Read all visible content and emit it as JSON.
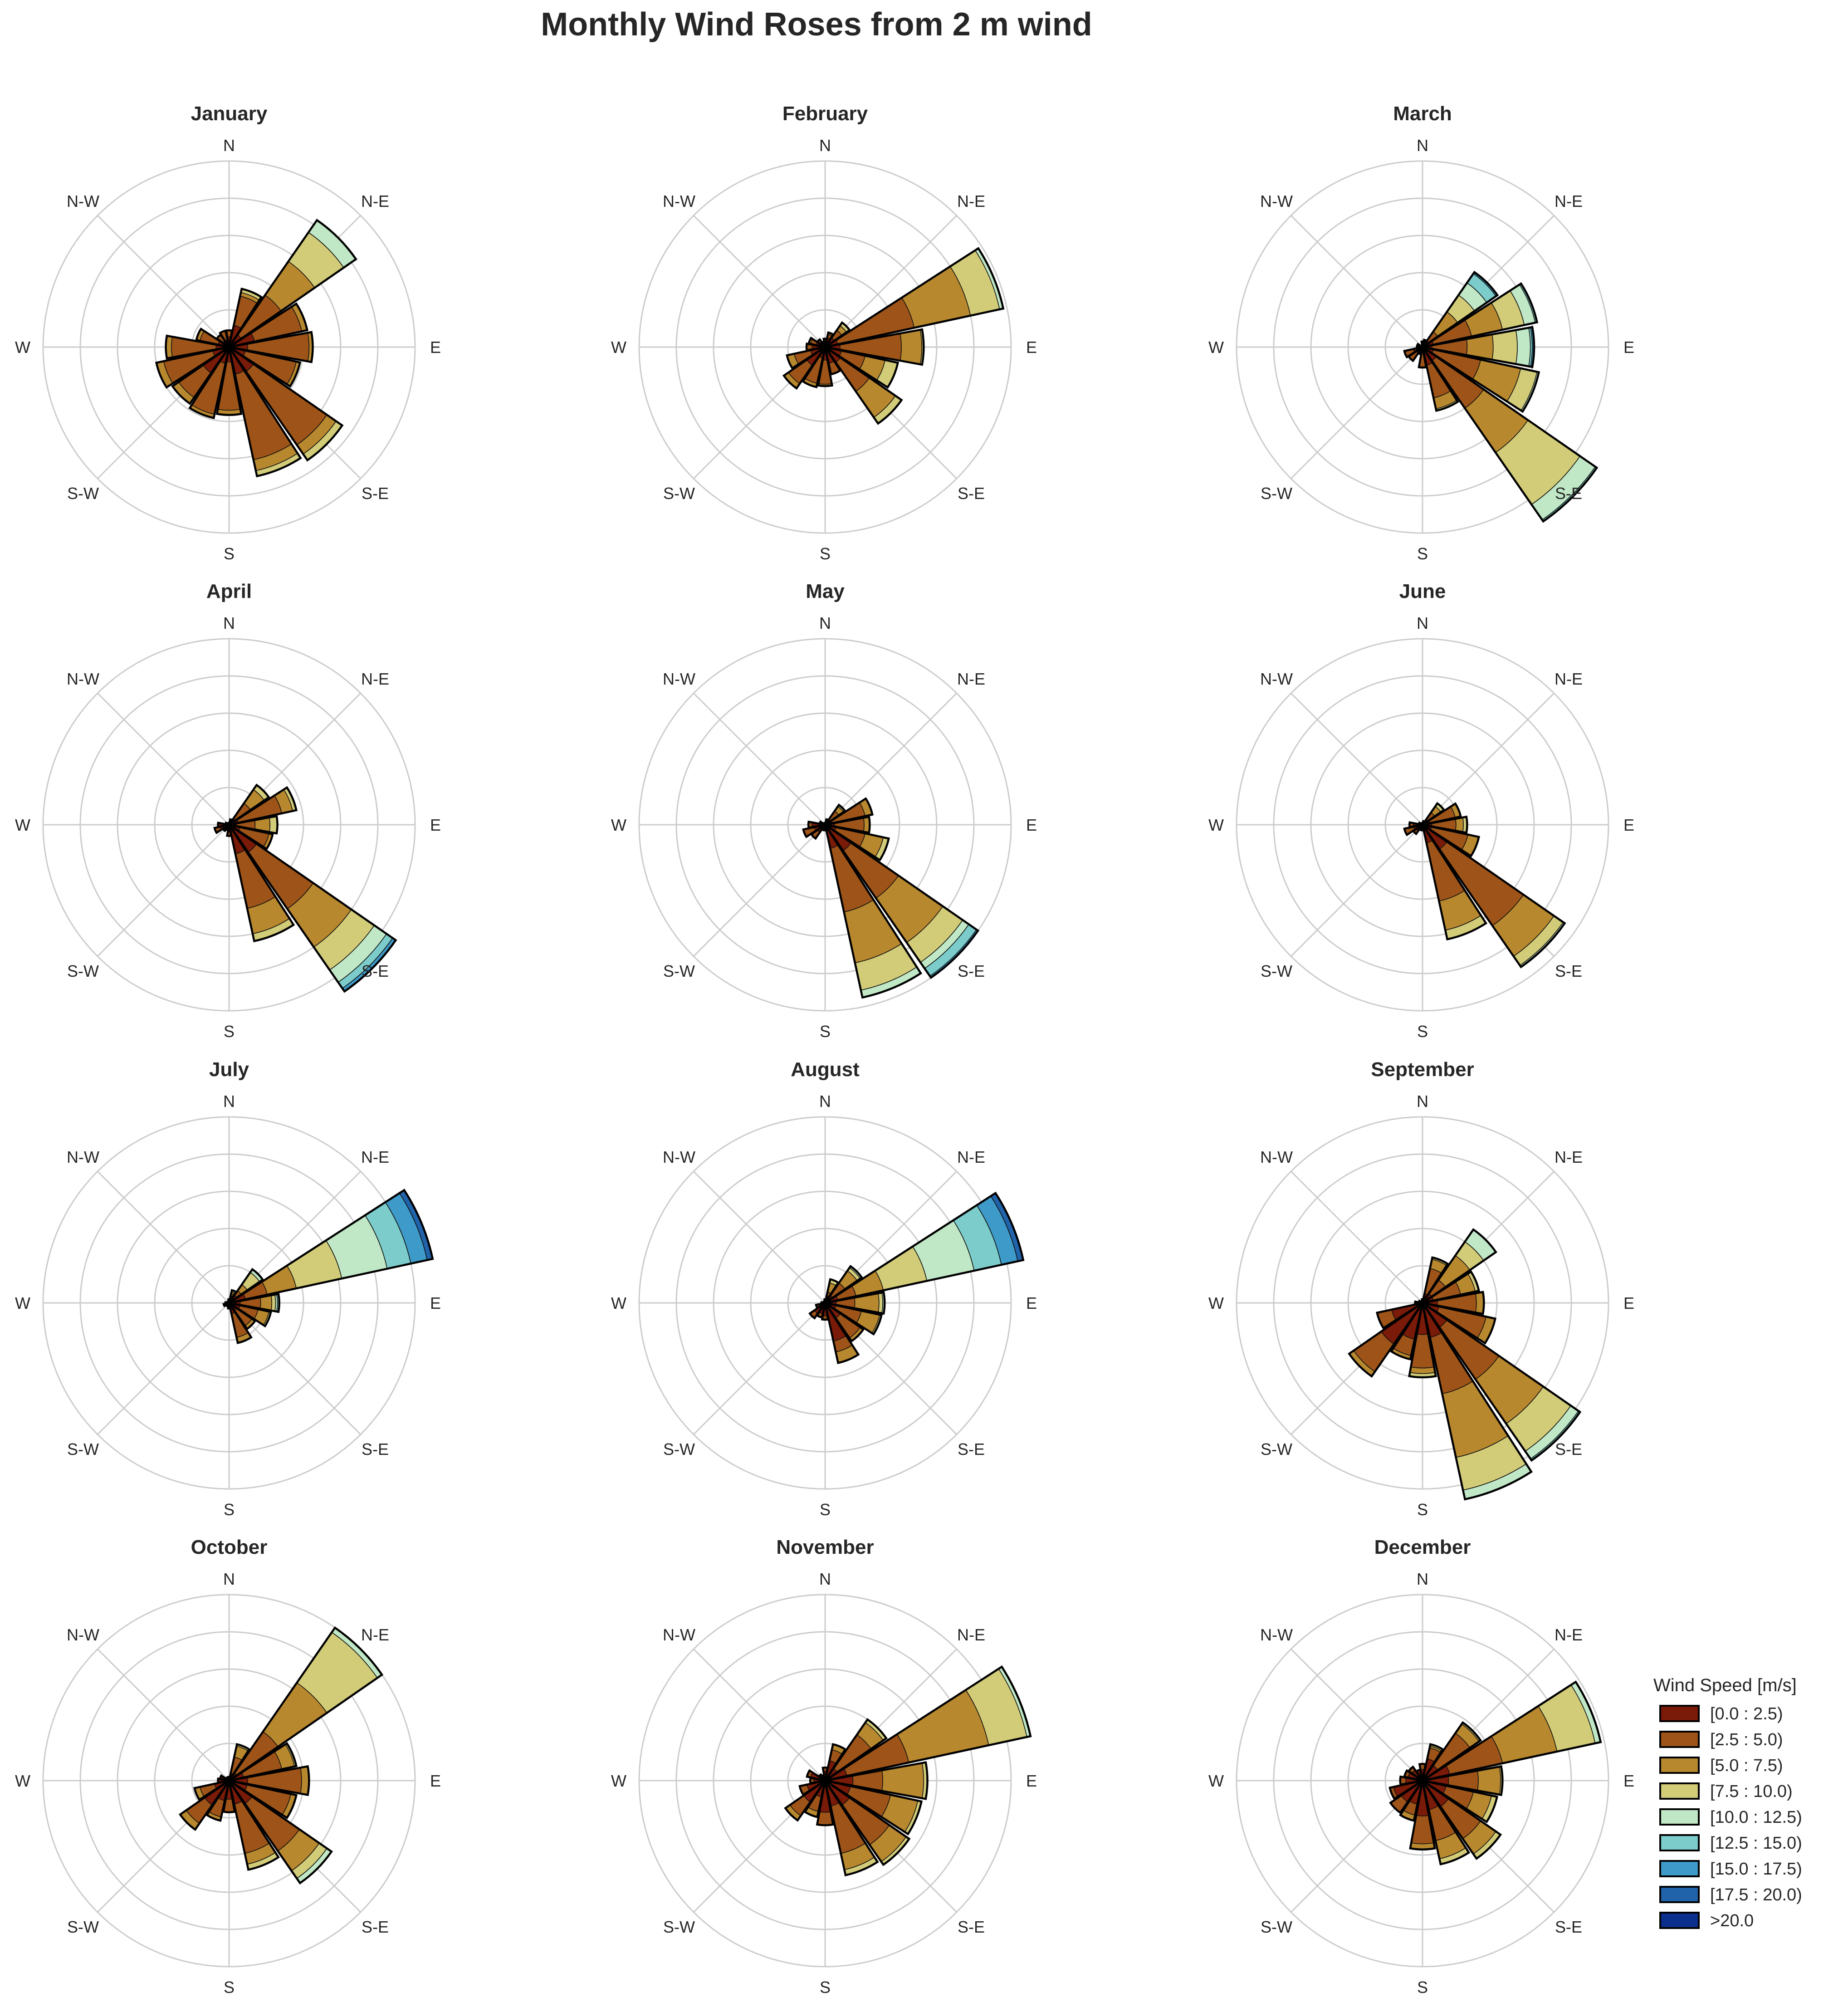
{
  "title": "Monthly Wind Roses from 2 m wind",
  "legend": {
    "title": "Wind Speed [m/s]",
    "bins": [
      "[0.0 : 2.5)",
      "[2.5 : 5.0)",
      "[5.0 : 7.5)",
      "[7.5 : 10.0)",
      "[10.0 : 12.5)",
      "[12.5 : 15.0)",
      "[15.0 : 17.5)",
      "[17.5 : 20.0)",
      ">20.0"
    ],
    "colors": [
      "#7a1a08",
      "#9e5418",
      "#b8882e",
      "#d2cc78",
      "#c0e8c6",
      "#7ccccc",
      "#3e9ac8",
      "#2063aa",
      "#0a2f8c"
    ]
  },
  "direction_labels": [
    "N",
    "N-E",
    "E",
    "S-E",
    "S",
    "S-W",
    "W",
    "N-W"
  ],
  "chart_data": {
    "type": "windrose",
    "sectors_deg": [
      0,
      22.5,
      45,
      67.5,
      90,
      112.5,
      135,
      157.5,
      180,
      202.5,
      225,
      247.5,
      270,
      292.5,
      315,
      337.5
    ],
    "radial_grid": [
      2,
      4,
      6,
      8,
      10
    ],
    "rmax": 10,
    "months": [
      {
        "name": "January",
        "sectors": [
          [
            0.55,
            0.35
          ],
          [
            1.2,
            1.6,
            0.2,
            0.2
          ],
          [
            0.8,
            2.6,
            2.2,
            1.9,
            0.8
          ],
          [
            1.4,
            2.6,
            0.3
          ],
          [
            1.0,
            3.3,
            0.2
          ],
          [
            0.9,
            2.8,
            0.2
          ],
          [
            1.6,
            4.8,
            0.6,
            0.4
          ],
          [
            1.5,
            4.7,
            0.6,
            0.3
          ],
          [
            0.8,
            2.6,
            0.25
          ],
          [
            0.9,
            2.8,
            0.2
          ],
          [
            1.7,
            1.6,
            0.4
          ],
          [
            0.9,
            2.7,
            0.4
          ],
          [
            0.7,
            2.4,
            0.3
          ],
          [
            0.6,
            1.0,
            0.2
          ],
          [
            0.4,
            0.4
          ],
          [
            0.4,
            0.5
          ]
        ]
      },
      {
        "name": "February",
        "sectors": [
          [
            0.3,
            0.15
          ],
          [
            0.5,
            0.2,
            0.1
          ],
          [
            0.6,
            0.5,
            0.3,
            0.2
          ],
          [
            0.7,
            4.2,
            3.1,
            1.6,
            0.2
          ],
          [
            0.8,
            3.3,
            1.1,
            0.1
          ],
          [
            0.9,
            1.3,
            1.1,
            0.7
          ],
          [
            1.0,
            1.9,
            1.7,
            0.4
          ],
          [
            0.9,
            0.6
          ],
          [
            0.7,
            1.3,
            0.1
          ],
          [
            0.6,
            1.4,
            0.2
          ],
          [
            1.2,
            1.2,
            0.3
          ],
          [
            0.8,
            0.9,
            0.4
          ],
          [
            0.7,
            0.3
          ],
          [
            0.5,
            0.3,
            0.1
          ],
          [
            0.3,
            0.2
          ],
          [
            0.2,
            0.1
          ]
        ]
      },
      {
        "name": "March",
        "sectors": [
          [
            0.2,
            0.1
          ],
          [
            0.3,
            0.1
          ],
          [
            0.4,
            0.6,
            1.3,
            1.1,
            0.8,
            0.6,
            0.1
          ],
          [
            0.6,
            2.1,
            1.7,
            1.2,
            0.6,
            0.1
          ],
          [
            0.5,
            1.9,
            1.4,
            1.3,
            0.7,
            0.1,
            0.1
          ],
          [
            0.6,
            2.6,
            2.2,
            0.9,
            0.1
          ],
          [
            0.9,
            3.1,
            2.9,
            3.4,
            1.0,
            0.1
          ],
          [
            1.0,
            1.8,
            0.6,
            0.1
          ],
          [
            0.3,
            0.8
          ],
          [
            0.3,
            0.1
          ],
          [
            0.4,
            0.5
          ],
          [
            0.5,
            0.5
          ],
          [
            0.3
          ],
          [
            0.2,
            0.1
          ],
          [
            0.1
          ],
          [
            0.1
          ]
        ]
      },
      {
        "name": "April",
        "sectors": [
          [
            0.1
          ],
          [
            0.2,
            0.1
          ],
          [
            0.4,
            1.0,
            0.9,
            0.3
          ],
          [
            0.5,
            2.4,
            0.6,
            0.2
          ],
          [
            0.4,
            1.0,
            0.8,
            0.4
          ],
          [
            0.6,
            1.6,
            0.2
          ],
          [
            1.8,
            3.7,
            2.5,
            1.5,
            0.8,
            0.4,
            0.2
          ],
          [
            1.6,
            3.0,
            1.4,
            0.4
          ],
          [
            0.4,
            0.2
          ],
          [
            0.3
          ],
          [
            0.3,
            0.1
          ],
          [
            0.5,
            0.3
          ],
          [
            0.6
          ],
          [
            0.2
          ],
          [
            0.1
          ],
          [
            0.1
          ]
        ]
      },
      {
        "name": "May",
        "sectors": [
          [
            0.1
          ],
          [
            0.2,
            0.1
          ],
          [
            0.3,
            0.6,
            0.3,
            0.1
          ],
          [
            0.4,
            1.8,
            0.4
          ],
          [
            0.5,
            1.6,
            0.3
          ],
          [
            0.6,
            1.6,
            1.0,
            0.3
          ],
          [
            1.7,
            3.1,
            2.9,
            1.3,
            0.4,
            0.5,
            0.1
          ],
          [
            1.3,
            3.5,
            2.8,
            1.5,
            0.4
          ],
          [
            0.3
          ],
          [
            0.3
          ],
          [
            0.5,
            0.4
          ],
          [
            0.6,
            0.6
          ],
          [
            0.7,
            0.2
          ],
          [
            0.3
          ],
          [
            0.1
          ],
          [
            0.1
          ]
        ]
      },
      {
        "name": "June",
        "sectors": [
          [
            0.1
          ],
          [
            0.2
          ],
          [
            0.3,
            0.5,
            0.4,
            0.2
          ],
          [
            0.4,
            1.4,
            0.3
          ],
          [
            0.5,
            1.3,
            0.4,
            0.2
          ],
          [
            0.5,
            2.0,
            0.6
          ],
          [
            1.6,
            5.0,
            2.0,
            0.6,
            0.1
          ],
          [
            1.0,
            3.2,
            1.6,
            0.5
          ],
          [
            0.3
          ],
          [
            0.3
          ],
          [
            0.4,
            0.2
          ],
          [
            0.5,
            0.5
          ],
          [
            0.5,
            0.2
          ],
          [
            0.2
          ],
          [
            0.1
          ],
          [
            0.1
          ]
        ]
      },
      {
        "name": "July",
        "sectors": [
          [
            0.2
          ],
          [
            0.4,
            0.1,
            0.1,
            0.1
          ],
          [
            0.5,
            0.3,
            0.4,
            0.8,
            0.2
          ],
          [
            0.9,
            1.2,
            1.6,
            2.5,
            2.5,
            1.3,
            0.9,
            0.3
          ],
          [
            0.6,
            1.1,
            0.6,
            0.2,
            0.1,
            0.1
          ],
          [
            0.6,
            1.0,
            0.6,
            0.1
          ],
          [
            0.5,
            1.0,
            0.2
          ],
          [
            0.6,
            1.3,
            0.3
          ],
          [
            0.3
          ],
          [
            0.2
          ],
          [
            0.2
          ],
          [
            0.3
          ],
          [
            0.2
          ],
          [
            0.1
          ],
          [
            0.1
          ],
          [
            0.1
          ]
        ]
      },
      {
        "name": "August",
        "sectors": [
          [
            0.2
          ],
          [
            0.4,
            0.2,
            0.5,
            0.2
          ],
          [
            0.5,
            0.8,
            0.8,
            0.2,
            0.1
          ],
          [
            0.7,
            1.0,
            1.5,
            2.4,
            2.6,
            1.5,
            0.9,
            0.3
          ],
          [
            0.6,
            1.0,
            1.3,
            0.2,
            0.1
          ],
          [
            0.6,
            1.4,
            1.0,
            0.1
          ],
          [
            1.0,
            1.3,
            0.2
          ],
          [
            2.1,
            0.6,
            0.6
          ],
          [
            0.7,
            0.2
          ],
          [
            0.6,
            0.2
          ],
          [
            0.7,
            0.3
          ],
          [
            0.3,
            0.2
          ],
          [
            0.2
          ],
          [
            0.1
          ],
          [
            0.1
          ],
          [
            0.1
          ]
        ]
      },
      {
        "name": "September",
        "sectors": [
          [
            0.2
          ],
          [
            0.5,
            1.4,
            0.5,
            0.1
          ],
          [
            0.6,
            0.9,
            1.6,
            0.9,
            0.8
          ],
          [
            0.6,
            1.5,
            0.8,
            0.2
          ],
          [
            0.8,
            2.1,
            0.4
          ],
          [
            0.9,
            2.6,
            0.5
          ],
          [
            1.6,
            3.4,
            2.9,
            1.8,
            0.5,
            0.1
          ],
          [
            1.9,
            3.1,
            3.5,
            1.8,
            0.5
          ],
          [
            1.7,
            1.8,
            0.3,
            0.2
          ],
          [
            2.0,
            0.9,
            0.2
          ],
          [
            2.7,
            1.8,
            0.3
          ],
          [
            1.7,
            0.8
          ],
          [
            0.4
          ],
          [
            0.2
          ],
          [
            0.1
          ],
          [
            0.1
          ]
        ]
      },
      {
        "name": "October",
        "sectors": [
          [
            0.2
          ],
          [
            0.4,
            0.9,
            0.6,
            0.1
          ],
          [
            0.5,
            2.7,
            3.2,
            3.3,
            0.3
          ],
          [
            0.8,
            2.1,
            0.7,
            0.1
          ],
          [
            1.0,
            2.9,
            0.4
          ],
          [
            1.0,
            2.4,
            0.3
          ],
          [
            1.5,
            3.1,
            1.3,
            0.5,
            0.3
          ],
          [
            1.3,
            2.7,
            0.6,
            0.3
          ],
          [
            1.0,
            0.7
          ],
          [
            1.1,
            0.9,
            0.2
          ],
          [
            1.6,
            1.2,
            0.4
          ],
          [
            0.8,
            0.8,
            0.3
          ],
          [
            0.6
          ],
          [
            0.4,
            0.1
          ],
          [
            0.2
          ],
          [
            0.2
          ]
        ]
      },
      {
        "name": "November",
        "sectors": [
          [
            0.5,
            0.2
          ],
          [
            1.1,
            0.6,
            0.3
          ],
          [
            0.8,
            2.2,
            0.8,
            0.2
          ],
          [
            1.2,
            3.4,
            4.4,
            2.1,
            0.2
          ],
          [
            1.5,
            1.6,
            2.2,
            0.2
          ],
          [
            1.4,
            2.2,
            1.5,
            0.2
          ],
          [
            1.6,
            2.6,
            1.1,
            0.2
          ],
          [
            1.4,
            2.6,
            0.9,
            0.3
          ],
          [
            1.7,
            0.7
          ],
          [
            0.9,
            0.8,
            0.3
          ],
          [
            1.4,
            0.9,
            0.3
          ],
          [
            1.0,
            0.4
          ],
          [
            0.6,
            0.2
          ],
          [
            0.8,
            0.2
          ],
          [
            0.4
          ],
          [
            0.3
          ]
        ]
      },
      {
        "name": "December",
        "sectors": [
          [
            0.6,
            0.3
          ],
          [
            1.2,
            0.6,
            0.1,
            0.1
          ],
          [
            1.0,
            2.1,
            0.6,
            0.1
          ],
          [
            1.5,
            2.9,
            3.0,
            2.1,
            0.3
          ],
          [
            1.4,
            1.6,
            1.2,
            0.1
          ],
          [
            1.3,
            1.5,
            1.0,
            0.3
          ],
          [
            1.7,
            2.1,
            1.0,
            0.3
          ],
          [
            1.6,
            1.7,
            1.0,
            0.3
          ],
          [
            1.9,
            1.5,
            0.3
          ],
          [
            1.3,
            0.6,
            0.3
          ],
          [
            1.4,
            0.7
          ],
          [
            1.6,
            0.2
          ],
          [
            0.9,
            0.3
          ],
          [
            0.8,
            0.2
          ],
          [
            0.7,
            0.2
          ],
          [
            0.6
          ]
        ]
      }
    ]
  }
}
